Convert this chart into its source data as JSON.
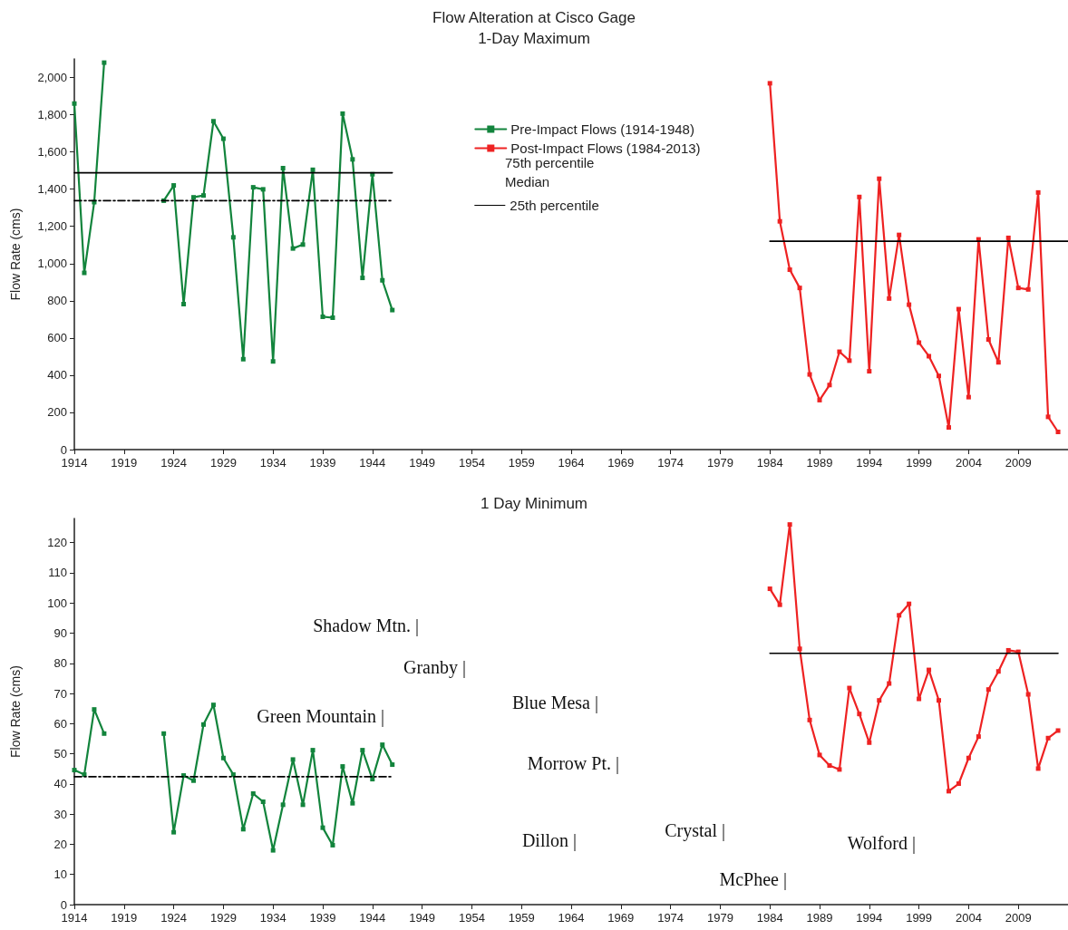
{
  "chart_data": [
    {
      "type": "line",
      "title": "Flow Alteration at Cisco Gage",
      "subtitle": "1-Day Maximum",
      "ylabel": "Flow Rate (cms)",
      "legend": "top",
      "xlim": [
        1914,
        2014
      ],
      "xticks": [
        1914,
        1919,
        1924,
        1929,
        1934,
        1939,
        1944,
        1949,
        1954,
        1959,
        1964,
        1969,
        1974,
        1979,
        1984,
        1989,
        1994,
        1999,
        2004,
        2009
      ],
      "ylim": [
        0,
        2100
      ],
      "yticks": [
        0,
        200,
        400,
        600,
        800,
        {
          "value": 1000,
          "label": "1,000"
        },
        {
          "value": 1200,
          "label": "1,200"
        },
        {
          "value": 1400,
          "label": "1,400"
        },
        {
          "value": 1600,
          "label": "1,600"
        },
        {
          "value": 1800,
          "label": "1,800"
        },
        {
          "value": 2000,
          "label": "2,000"
        }
      ],
      "annotations": [
        "75th percentile",
        "Median"
      ],
      "series": [
        {
          "name": "Pre-Impact Flows (1914-1948)",
          "color": "#12843c",
          "marker": "square",
          "x": [
            1914,
            1915,
            1916,
            1917,
            1918,
            1923,
            1924,
            1925,
            1926,
            1927,
            1928,
            1929,
            1930,
            1931,
            1932,
            1933,
            1934,
            1935,
            1936,
            1937,
            1938,
            1939,
            1940,
            1941,
            1942,
            1943,
            1944,
            1945,
            1946
          ],
          "values": [
            1860,
            950,
            1330,
            2080,
            null,
            1338,
            1420,
            782,
            1356,
            1366,
            1765,
            1671,
            1141,
            486,
            1410,
            1399,
            474,
            1513,
            1081,
            1102,
            1504,
            714,
            709,
            1806,
            1560,
            923,
            1480,
            910,
            750
          ]
        },
        {
          "name": "Post-Impact Flows (1984-2013)",
          "color": "#ee2222",
          "marker": "square",
          "x": [
            1984,
            1985,
            1986,
            1987,
            1988,
            1989,
            1990,
            1991,
            1992,
            1993,
            1994,
            1995,
            1996,
            1997,
            1998,
            1999,
            2000,
            2001,
            2002,
            2003,
            2004,
            2005,
            2006,
            2007,
            2008,
            2009,
            2010,
            2011,
            2012,
            2013
          ],
          "values": [
            1969,
            1227,
            967,
            869,
            404,
            266,
            347,
            526,
            478,
            1358,
            421,
            1456,
            812,
            1154,
            779,
            575,
            502,
            396,
            119,
            755,
            282,
            1130,
            592,
            469,
            1138,
            869,
            861,
            1382,
            176,
            95
          ]
        },
        {
          "name": "25th percentile",
          "color": "#000000",
          "marker": "none",
          "x": [
            1914,
            1946
          ],
          "values": [
            1488,
            1488
          ]
        },
        {
          "color": "#000000",
          "marker": "none",
          "x": [
            1984,
            2014
          ],
          "values": [
            1120,
            1120
          ]
        },
        {
          "color": "#000000",
          "marker": "none",
          "line_style": "dashed",
          "x": [
            1914,
            1946
          ],
          "values": [
            1338,
            1338
          ]
        }
      ]
    },
    {
      "type": "line",
      "title": "1 Day Minimum",
      "ylabel": "Flow Rate (cms)",
      "xlim": [
        1914,
        2014
      ],
      "xticks": [
        1914,
        1919,
        1924,
        1929,
        1934,
        1939,
        1944,
        1949,
        1954,
        1959,
        1964,
        1969,
        1974,
        1979,
        1984,
        1989,
        1994,
        1999,
        2004,
        2009
      ],
      "ylim": [
        0,
        128
      ],
      "yticks": [
        0,
        10,
        20,
        30,
        40,
        50,
        60,
        70,
        80,
        90,
        100,
        110,
        120
      ],
      "annotations": [
        "Shadow Mtn. |",
        "Granby |",
        "Green Mountain |",
        "Blue Mesa |",
        "Morrow Pt. |",
        "Dillon |",
        "Crystal |",
        "McPhee |",
        "Wolford |"
      ],
      "series": [
        {
          "color": "#12843c",
          "marker": "square",
          "x": [
            1914,
            1915,
            1916,
            1917,
            1918,
            1923,
            1924,
            1925,
            1926,
            1927,
            1928,
            1929,
            1930,
            1931,
            1932,
            1933,
            1934,
            1935,
            1936,
            1937,
            1938,
            1939,
            1940,
            1941,
            1942,
            1943,
            1944,
            1945,
            1946
          ],
          "values": [
            44.6,
            43.1,
            64.7,
            56.7,
            null,
            56.7,
            24.0,
            42.8,
            41.1,
            59.7,
            66.2,
            48.6,
            43.1,
            25.0,
            36.8,
            34.1,
            18.0,
            33.1,
            48.1,
            33.1,
            51.2,
            25.5,
            19.7,
            45.8,
            33.6,
            51.2,
            41.6,
            53.0,
            46.4
          ]
        },
        {
          "color": "#ee2222",
          "marker": "square",
          "x": [
            1984,
            1985,
            1986,
            1987,
            1988,
            1989,
            1990,
            1991,
            1992,
            1993,
            1994,
            1995,
            1996,
            1997,
            1998,
            1999,
            2000,
            2001,
            2002,
            2003,
            2004,
            2005,
            2006,
            2007,
            2008,
            2009,
            2010,
            2011,
            2012,
            2013
          ],
          "values": [
            104.7,
            99.4,
            126.0,
            84.8,
            61.2,
            49.6,
            46.1,
            44.8,
            71.8,
            63.2,
            53.7,
            67.7,
            73.3,
            95.9,
            99.7,
            68.2,
            77.8,
            67.7,
            37.6,
            40.1,
            48.6,
            55.7,
            71.3,
            77.3,
            84.3,
            83.8,
            69.7,
            45.1,
            55.2,
            57.7
          ]
        },
        {
          "color": "#000000",
          "marker": "none",
          "x": [
            1984,
            2013
          ],
          "values": [
            83.3,
            83.3
          ]
        },
        {
          "color": "#000000",
          "marker": "none",
          "line_style": "dashed",
          "x": [
            1914,
            1946
          ],
          "values": [
            42.4,
            42.4
          ]
        }
      ]
    }
  ]
}
